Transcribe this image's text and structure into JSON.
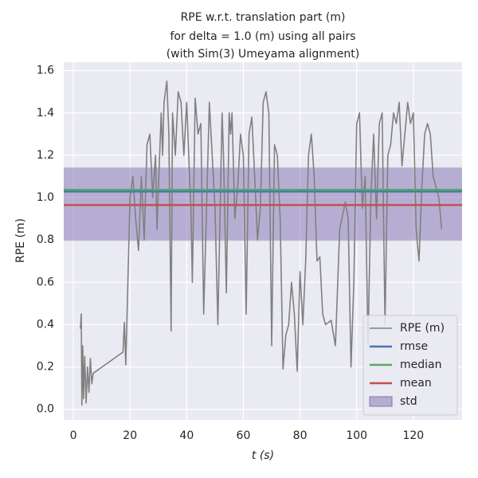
{
  "chart_data": {
    "type": "line",
    "title": [
      "RPE w.r.t. translation part (m)",
      "for delta = 1.0 (m) using all pairs",
      "(with Sim(3) Umeyama alignment)"
    ],
    "xlabel": "t (s)",
    "ylabel": "RPE (m)",
    "xlim": [
      -3.4,
      137.2
    ],
    "ylim": [
      -0.05,
      1.64
    ],
    "xticks": [
      0,
      20,
      40,
      60,
      80,
      100,
      120
    ],
    "yticks": [
      {
        "value": 0,
        "label": "0.0"
      },
      {
        "value": 0.2,
        "label": "0.2"
      },
      {
        "value": 0.4,
        "label": "0.4"
      },
      {
        "value": 0.6,
        "label": "0.6"
      },
      {
        "value": 0.8,
        "label": "0.8"
      },
      {
        "value": 1,
        "label": "1.0"
      },
      {
        "value": 1.2,
        "label": "1.2"
      },
      {
        "value": 1.4,
        "label": "1.4"
      },
      {
        "value": 1.6,
        "label": "1.6"
      }
    ],
    "grid": true,
    "legend": "lower right",
    "series": [
      {
        "name": "RPE (m)",
        "color": "#808080",
        "x": [
          2.5,
          2.8,
          3,
          3.3,
          3.6,
          4,
          4.5,
          5,
          5.5,
          6,
          6.5,
          7,
          17.5,
          18,
          18.5,
          20,
          21,
          22,
          23,
          24,
          25,
          26,
          27,
          28,
          29,
          29.5,
          31,
          31.5,
          32,
          33,
          33.7,
          34.5,
          35,
          36,
          37,
          38,
          39,
          40,
          41,
          41.5,
          42,
          43,
          44,
          45,
          46,
          48,
          49,
          50,
          51,
          52.5,
          53,
          54,
          55,
          55.5,
          56,
          57,
          58,
          59,
          60,
          61,
          62,
          63,
          64,
          65,
          66,
          67,
          68,
          69,
          70,
          71,
          72,
          73,
          74,
          75,
          76,
          77,
          78,
          79,
          80,
          81,
          82,
          83,
          84,
          85,
          86,
          87,
          88,
          89,
          91,
          92.5,
          94,
          96,
          97,
          98,
          99,
          100,
          101,
          102,
          103,
          104,
          105,
          106,
          107,
          108,
          109,
          110,
          111,
          112,
          113,
          114,
          115,
          116,
          117,
          118,
          119,
          120,
          121,
          122,
          123,
          124,
          125,
          126,
          127,
          128,
          129,
          130
        ],
        "values": [
          0.38,
          0.45,
          0.02,
          0.3,
          0.05,
          0.25,
          0.03,
          0.2,
          0.08,
          0.24,
          0.12,
          0.17,
          0.27,
          0.41,
          0.21,
          1.0,
          1.1,
          0.9,
          0.75,
          1.1,
          0.8,
          1.25,
          1.3,
          1.0,
          1.2,
          0.85,
          1.4,
          1.2,
          1.45,
          1.55,
          1.3,
          0.37,
          1.4,
          1.2,
          1.5,
          1.45,
          1.2,
          1.45,
          1.1,
          0.95,
          0.6,
          1.47,
          1.3,
          1.35,
          0.45,
          1.45,
          1.2,
          0.95,
          0.4,
          1.4,
          1.2,
          0.55,
          1.4,
          1.3,
          1.4,
          0.9,
          1.05,
          1.3,
          1.2,
          0.45,
          1.3,
          1.38,
          1.1,
          0.8,
          0.95,
          1.45,
          1.5,
          1.4,
          0.3,
          1.25,
          1.2,
          0.9,
          0.19,
          0.35,
          0.4,
          0.6,
          0.45,
          0.18,
          0.65,
          0.4,
          0.7,
          1.2,
          1.3,
          1.1,
          0.7,
          0.72,
          0.45,
          0.4,
          0.42,
          0.3,
          0.85,
          0.98,
          0.9,
          0.2,
          0.6,
          1.35,
          1.4,
          0.95,
          1.1,
          0.3,
          1.0,
          1.3,
          0.9,
          1.35,
          1.4,
          0.4,
          1.2,
          1.25,
          1.4,
          1.35,
          1.45,
          1.15,
          1.3,
          1.45,
          1.35,
          1.4,
          0.85,
          0.7,
          1.05,
          1.3,
          1.35,
          1.3,
          1.1,
          1.05,
          1.0,
          0.85
        ]
      }
    ],
    "reference_lines": [
      {
        "name": "rmse",
        "color": "#4c72b0",
        "value": 1.029
      },
      {
        "name": "median",
        "color": "#55a868",
        "value": 1.037
      },
      {
        "name": "mean",
        "color": "#c44e52",
        "value": 0.965
      }
    ],
    "band": {
      "name": "std",
      "color": "#8172b2",
      "range": [
        0.796,
        1.142
      ]
    }
  }
}
